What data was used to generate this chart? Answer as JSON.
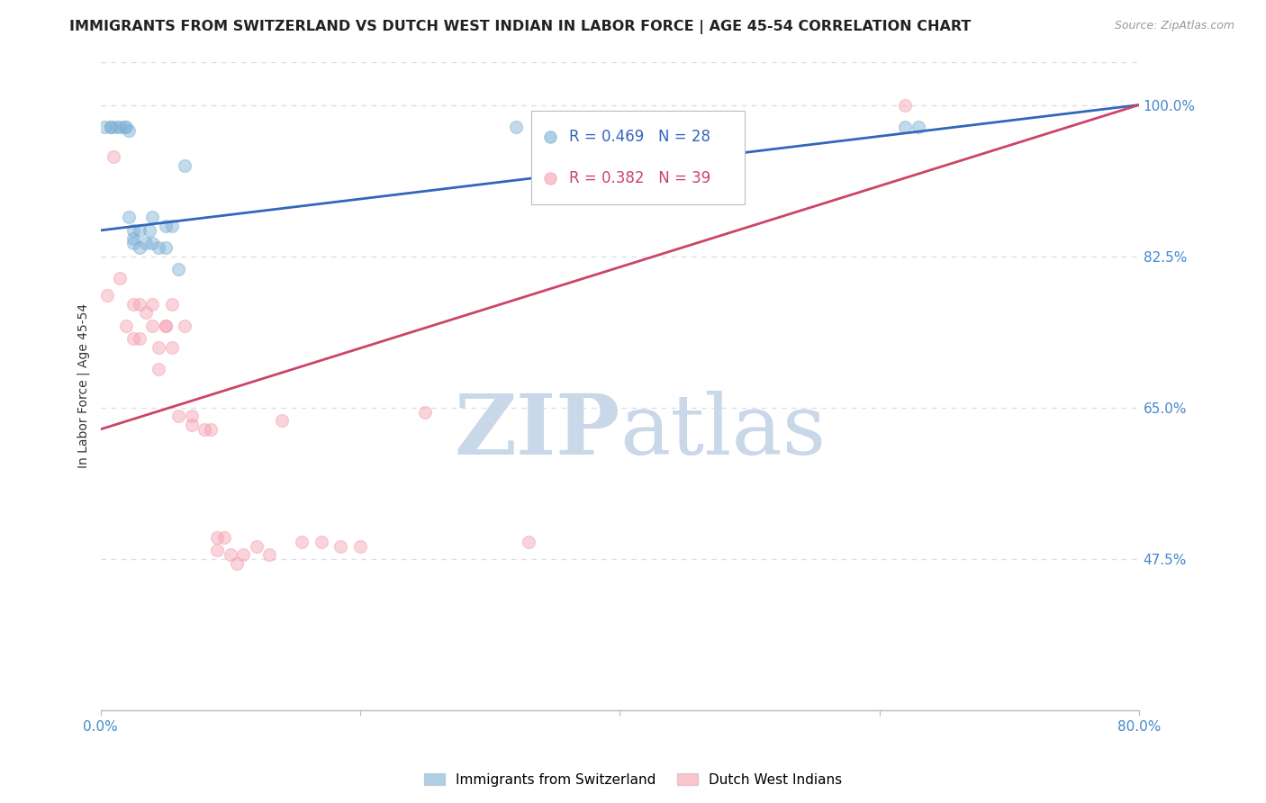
{
  "title": "IMMIGRANTS FROM SWITZERLAND VS DUTCH WEST INDIAN IN LABOR FORCE | AGE 45-54 CORRELATION CHART",
  "source": "Source: ZipAtlas.com",
  "ylabel": "In Labor Force | Age 45-54",
  "xlim": [
    0.0,
    0.8
  ],
  "ylim": [
    0.3,
    1.05
  ],
  "yticks": [
    0.475,
    0.65,
    0.825,
    1.0
  ],
  "ytick_labels": [
    "47.5%",
    "65.0%",
    "82.5%",
    "100.0%"
  ],
  "xticks": [
    0.0,
    0.2,
    0.4,
    0.6,
    0.8
  ],
  "xtick_labels": [
    "0.0%",
    "",
    "",
    "",
    "80.0%"
  ],
  "blue_color": "#7BAFD4",
  "pink_color": "#F4A0B0",
  "blue_line_color": "#3366BB",
  "pink_line_color": "#CC4466",
  "grid_color": "#DDDDEE",
  "watermark_zip": "ZIP",
  "watermark_atlas": "atlas",
  "watermark_color": "#C8D8E8",
  "blue_scatter_x": [
    0.003,
    0.008,
    0.008,
    0.012,
    0.015,
    0.018,
    0.02,
    0.022,
    0.022,
    0.025,
    0.025,
    0.025,
    0.03,
    0.03,
    0.035,
    0.038,
    0.04,
    0.04,
    0.045,
    0.05,
    0.05,
    0.055,
    0.06,
    0.065,
    0.32,
    0.44,
    0.62,
    0.63
  ],
  "blue_scatter_y": [
    0.975,
    0.975,
    0.975,
    0.975,
    0.975,
    0.975,
    0.975,
    0.97,
    0.87,
    0.855,
    0.845,
    0.84,
    0.855,
    0.835,
    0.84,
    0.855,
    0.87,
    0.84,
    0.835,
    0.86,
    0.835,
    0.86,
    0.81,
    0.93,
    0.975,
    0.975,
    0.975,
    0.975
  ],
  "pink_scatter_x": [
    0.005,
    0.01,
    0.015,
    0.02,
    0.025,
    0.025,
    0.03,
    0.03,
    0.035,
    0.04,
    0.04,
    0.045,
    0.045,
    0.05,
    0.05,
    0.055,
    0.055,
    0.06,
    0.065,
    0.07,
    0.07,
    0.08,
    0.085,
    0.09,
    0.09,
    0.095,
    0.1,
    0.105,
    0.11,
    0.12,
    0.13,
    0.14,
    0.155,
    0.17,
    0.185,
    0.2,
    0.25,
    0.62,
    0.33
  ],
  "pink_scatter_y": [
    0.78,
    0.94,
    0.8,
    0.745,
    0.77,
    0.73,
    0.77,
    0.73,
    0.76,
    0.77,
    0.745,
    0.72,
    0.695,
    0.745,
    0.745,
    0.77,
    0.72,
    0.64,
    0.745,
    0.64,
    0.63,
    0.625,
    0.625,
    0.5,
    0.485,
    0.5,
    0.48,
    0.47,
    0.48,
    0.49,
    0.48,
    0.635,
    0.495,
    0.495,
    0.49,
    0.49,
    0.645,
    1.0,
    0.495
  ],
  "blue_trendline_x": [
    0.0,
    0.8
  ],
  "blue_trendline_y": [
    0.855,
    1.0
  ],
  "pink_trendline_x": [
    0.0,
    0.8
  ],
  "pink_trendline_y": [
    0.625,
    1.0
  ],
  "marker_size": 100,
  "marker_alpha": 0.45,
  "background_color": "#FFFFFF",
  "title_fontsize": 11.5,
  "tick_fontsize": 11,
  "legend_label_blue": "Immigrants from Switzerland",
  "legend_label_pink": "Dutch West Indians",
  "legend_r_blue": "R = 0.469",
  "legend_n_blue": "N = 28",
  "legend_r_pink": "R = 0.382",
  "legend_n_pink": "N = 39"
}
